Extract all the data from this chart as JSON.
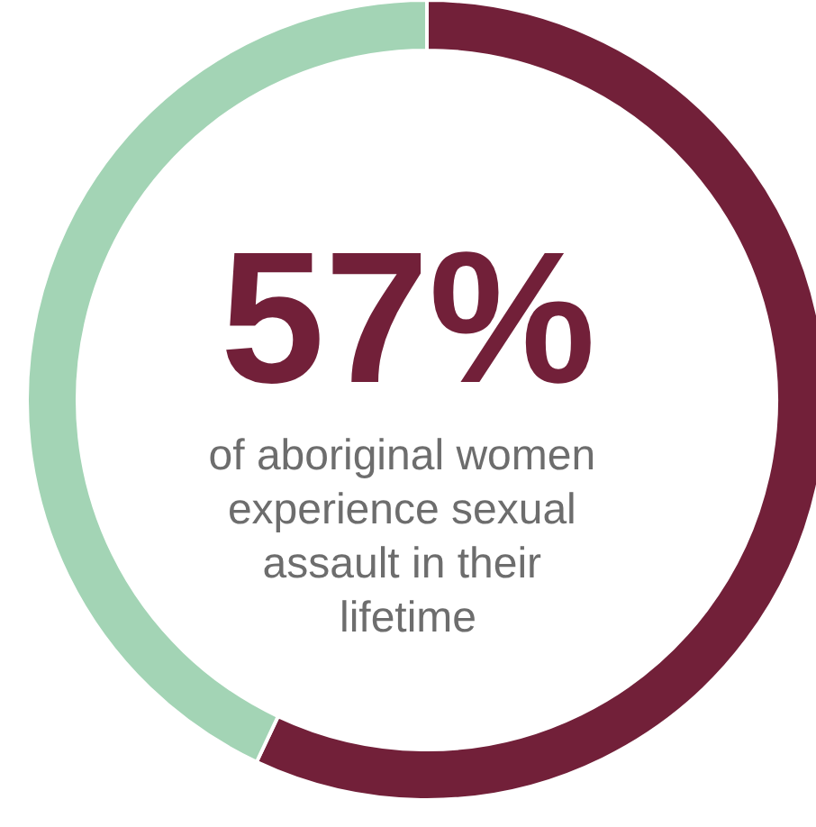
{
  "chart_data": {
    "type": "donut",
    "categories": [
      null,
      null
    ],
    "values": [
      57,
      43
    ],
    "colors": [
      "#722039",
      "#a3d4b5"
    ],
    "value_labels": [
      "57%",
      null
    ],
    "annotations": [
      "of aboriginal women experience sexual assault in their lifetime"
    ]
  }
}
